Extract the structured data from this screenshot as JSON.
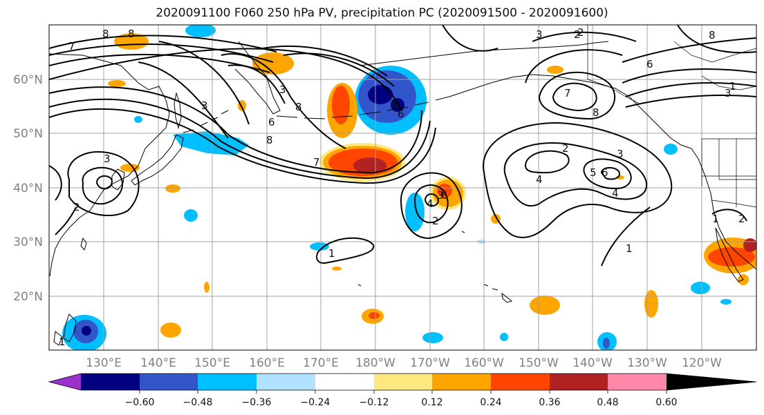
{
  "title": "2020091100 F060 250 hPa PV, precipitation PC (2020091500 - 2020091600)",
  "latitude_labels": [
    "60°N",
    "50°N",
    "40°N",
    "30°N",
    "20°N"
  ],
  "longitude_labels": [
    "130°E",
    "140°E",
    "150°E",
    "160°E",
    "170°E",
    "180°W",
    "170°W",
    "160°W",
    "150°W",
    "140°W",
    "130°W",
    "120°W"
  ],
  "colorbar": {
    "colors": [
      "#9933cc",
      "#000080",
      "#3355cc",
      "#00bfff",
      "#b0e2ff",
      "#ffffff",
      "#ffe87f",
      "#ffa500",
      "#ff4500",
      "#b22222",
      "#ff88aa"
    ],
    "tick_labels": [
      "−0.60",
      "−0.48",
      "−0.36",
      "−0.24",
      "−0.12",
      "0.12",
      "0.24",
      "0.36",
      "0.48",
      "0.60"
    ]
  },
  "pv_contour_labels": [
    "8",
    "8",
    "8",
    "8",
    "7",
    "3",
    "3",
    "6",
    "2",
    "3",
    "7",
    "8",
    "6",
    "4",
    "3",
    "6",
    "1",
    "4",
    "2",
    "3",
    "2",
    "1",
    "7",
    "6",
    "8",
    "3",
    "3",
    "2",
    "2",
    "4",
    "5",
    "6",
    "1",
    "1",
    "8",
    "1",
    "2"
  ]
}
